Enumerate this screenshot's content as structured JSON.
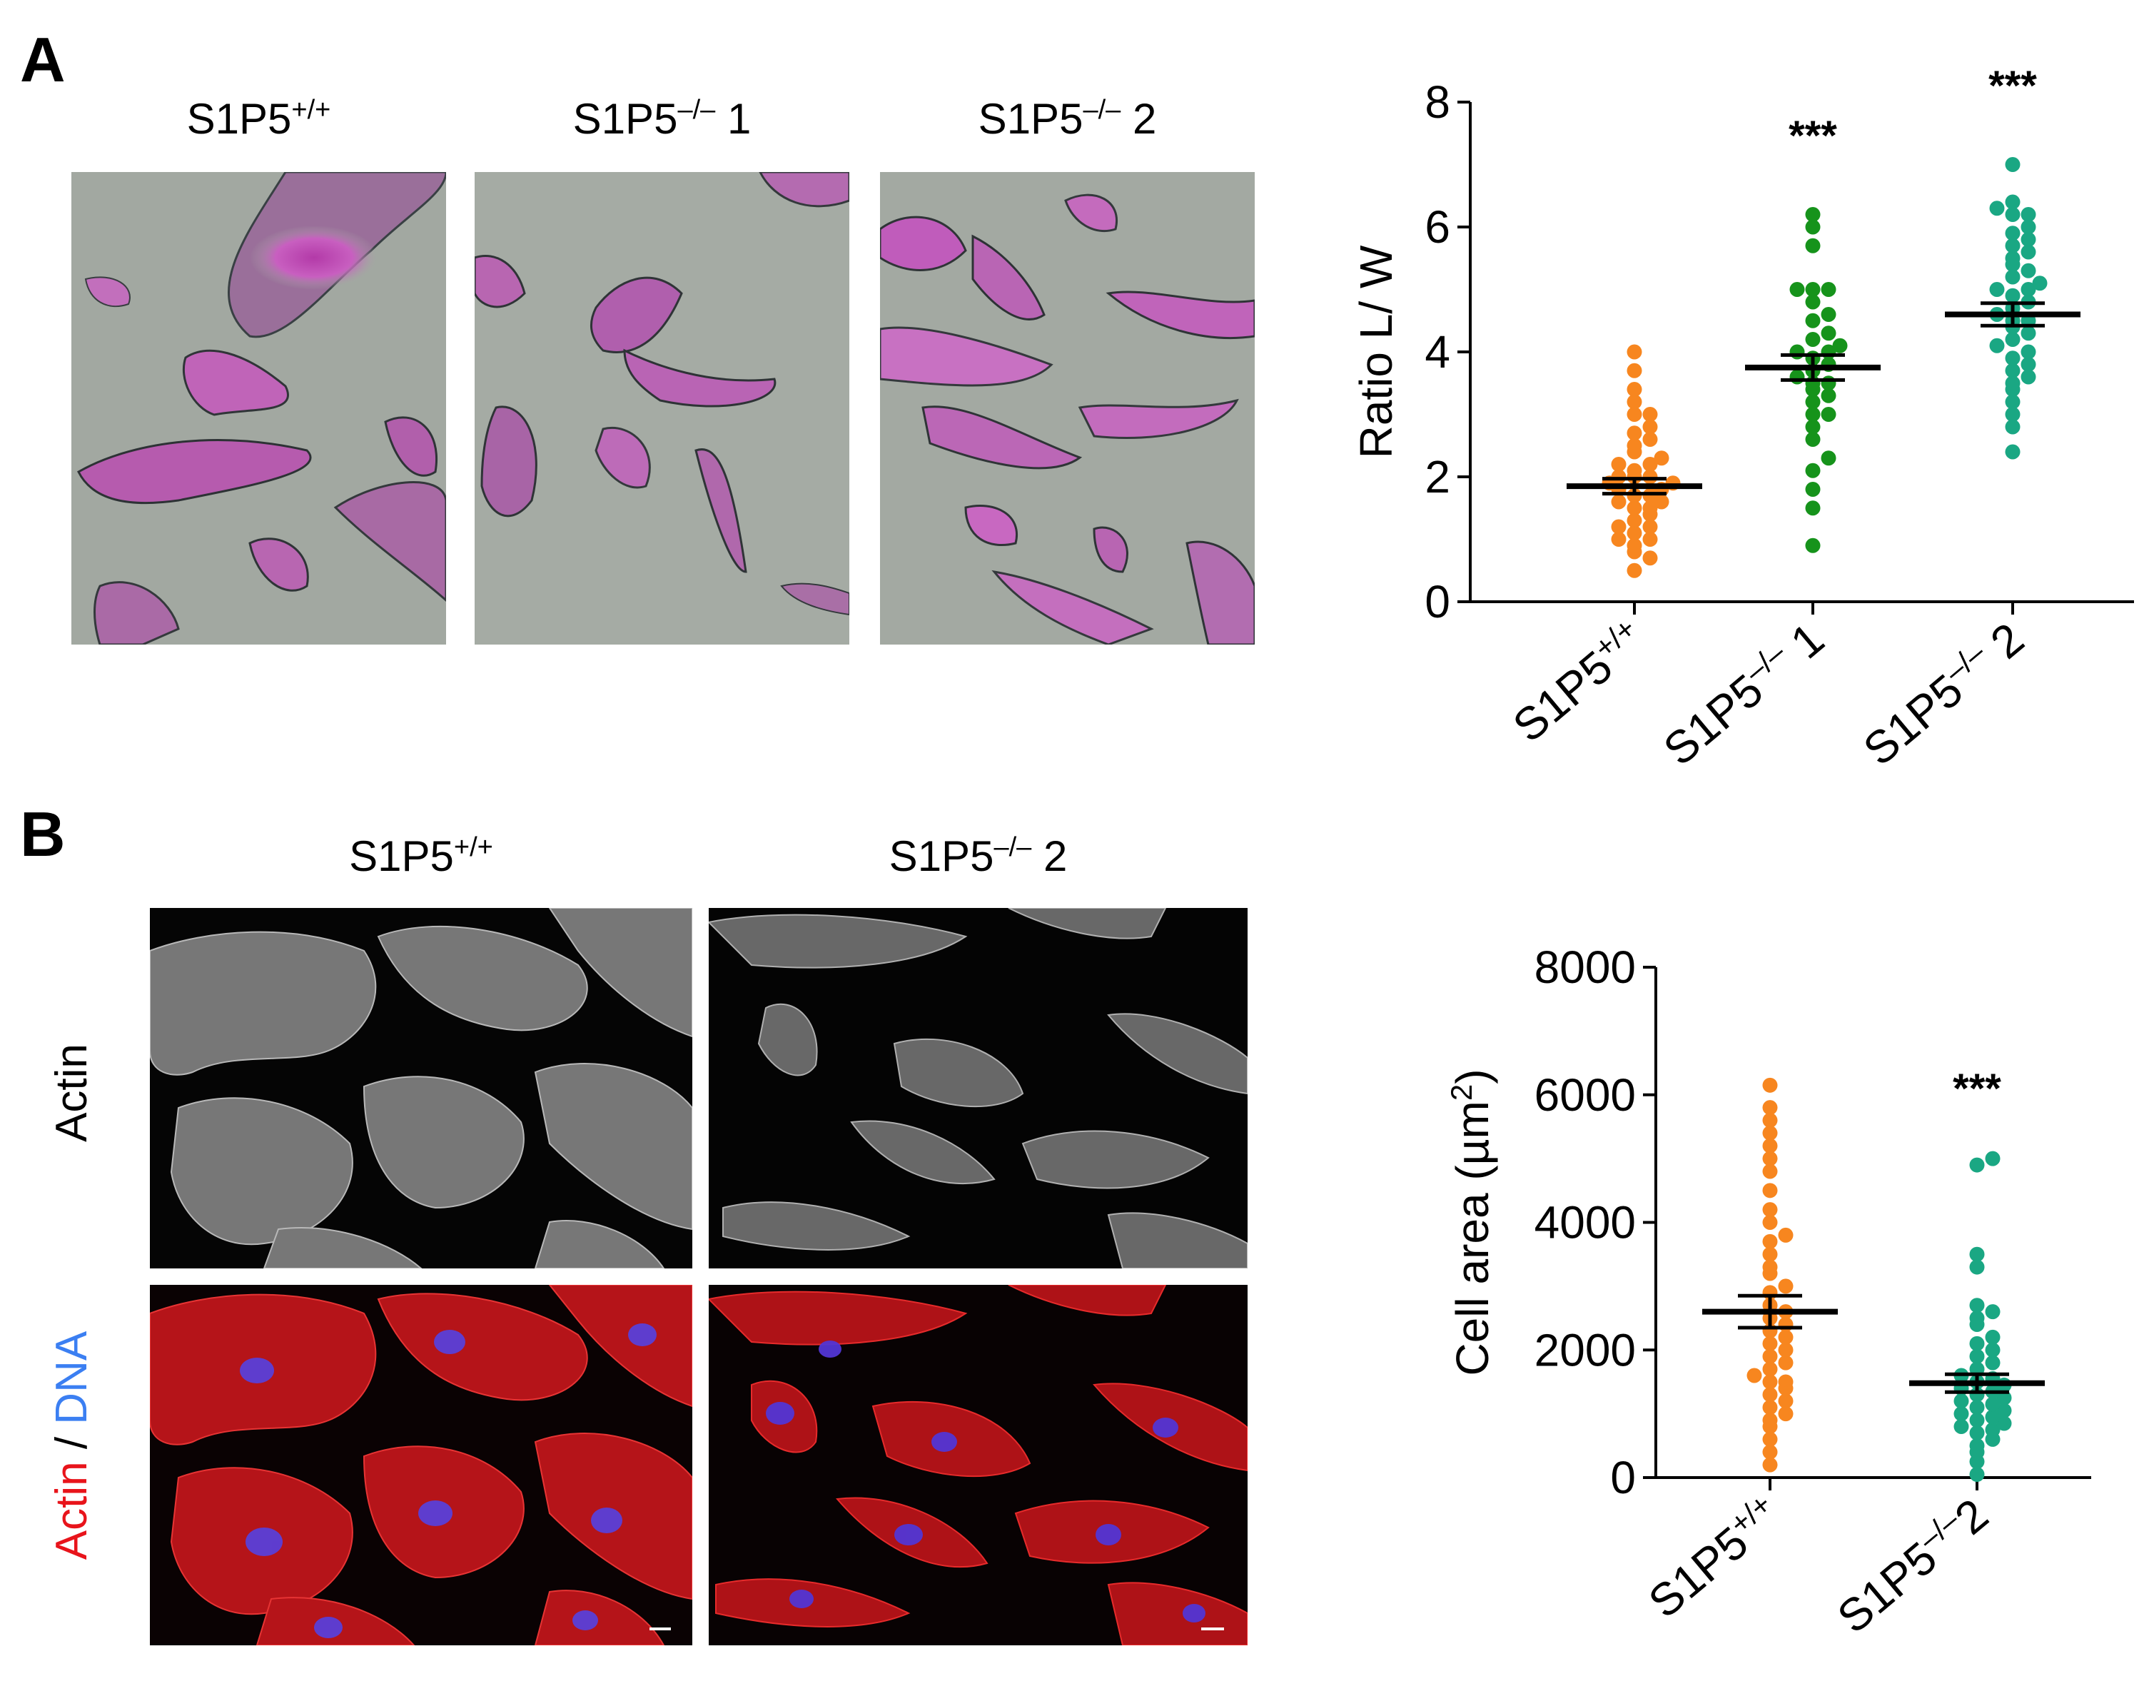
{
  "panel_a": {
    "letter": "A",
    "images": [
      {
        "label_base": "S1P5",
        "label_sup": "+/+",
        "label_suffix": ""
      },
      {
        "label_base": "S1P5",
        "label_sup": "–/–",
        "label_suffix": " 1"
      },
      {
        "label_base": "S1P5",
        "label_sup": "–/–",
        "label_suffix": " 2"
      }
    ]
  },
  "panel_b": {
    "letter": "B",
    "images": [
      {
        "label_base": "S1P5",
        "label_sup": "+/+",
        "label_suffix": ""
      },
      {
        "label_base": "S1P5",
        "label_sup": "–/–",
        "label_suffix": " 2"
      }
    ],
    "row_label_actin": "Actin",
    "row_label_merge_actin": "Actin",
    "row_label_merge_sep": " / ",
    "row_label_merge_dna": "DNA"
  },
  "colors": {
    "wt": "#f7861f",
    "ko1": "#16931b",
    "ko2": "#1aa783",
    "actin_red": "#e8141b",
    "dna_blue": "#3b7ff2"
  },
  "chart_data": [
    {
      "type": "scatter",
      "ylabel": "Ratio L/ W",
      "ylim": [
        0,
        8
      ],
      "yticks": [
        0,
        2,
        4,
        6,
        8
      ],
      "categories": [
        "S1P5+/+",
        "S1P5–/– 1",
        "S1P5–/– 2"
      ],
      "tick_labels": [
        {
          "base": "S1P5",
          "sup": "+/+",
          "suffix": ""
        },
        {
          "base": "S1P5",
          "sup": "–/–",
          "suffix": " 1"
        },
        {
          "base": "S1P5",
          "sup": "–/–",
          "suffix": " 2"
        }
      ],
      "significance": [
        "",
        "***",
        "***"
      ],
      "series": [
        {
          "color_key": "wt",
          "mean": 1.85,
          "sem": 0.12,
          "values": [
            0.5,
            0.7,
            0.8,
            0.9,
            1.0,
            1.0,
            1.1,
            1.2,
            1.2,
            1.3,
            1.4,
            1.5,
            1.5,
            1.6,
            1.6,
            1.7,
            1.7,
            1.8,
            1.8,
            1.9,
            1.9,
            2.0,
            2.0,
            2.0,
            2.1,
            2.2,
            2.2,
            2.3,
            2.4,
            2.5,
            2.6,
            2.7,
            2.8,
            3.0,
            3.0,
            3.2,
            3.4,
            3.7,
            4.0
          ]
        },
        {
          "color_key": "ko1",
          "mean": 3.75,
          "sem": 0.2,
          "values": [
            0.9,
            1.5,
            1.8,
            2.1,
            2.3,
            2.6,
            2.8,
            3.0,
            3.0,
            3.2,
            3.3,
            3.4,
            3.5,
            3.5,
            3.6,
            3.7,
            3.8,
            3.9,
            4.0,
            4.0,
            4.1,
            4.2,
            4.3,
            4.5,
            4.6,
            4.8,
            5.0,
            5.0,
            5.0,
            5.7,
            6.0,
            6.2
          ]
        },
        {
          "color_key": "ko2",
          "mean": 4.6,
          "sem": 0.18,
          "values": [
            2.4,
            2.8,
            3.0,
            3.2,
            3.4,
            3.5,
            3.6,
            3.7,
            3.8,
            3.9,
            4.0,
            4.1,
            4.2,
            4.3,
            4.4,
            4.5,
            4.5,
            4.6,
            4.7,
            4.8,
            4.9,
            5.0,
            5.0,
            5.1,
            5.2,
            5.3,
            5.4,
            5.5,
            5.6,
            5.7,
            5.8,
            5.9,
            6.0,
            6.2,
            6.2,
            6.3,
            6.4,
            7.0
          ]
        }
      ]
    },
    {
      "type": "scatter",
      "ylabel_base": "Cell area (µm",
      "ylabel_sup": "2",
      "ylabel_end": ")",
      "ylim": [
        0,
        8000
      ],
      "yticks": [
        0,
        2000,
        4000,
        6000,
        8000
      ],
      "categories": [
        "S1P5+/+",
        "S1P5–/–2"
      ],
      "tick_labels": [
        {
          "base": "S1P5",
          "sup": "+/+",
          "suffix": ""
        },
        {
          "base": "S1P5",
          "sup": "–/–",
          "suffix": "2"
        }
      ],
      "significance": [
        "",
        "***"
      ],
      "series": [
        {
          "color_key": "wt",
          "mean": 2600,
          "sem": 250,
          "values": [
            200,
            400,
            600,
            800,
            900,
            1000,
            1100,
            1200,
            1300,
            1400,
            1500,
            1500,
            1600,
            1700,
            1800,
            1900,
            2000,
            2100,
            2200,
            2300,
            2400,
            2500,
            2600,
            2700,
            2900,
            3000,
            3200,
            3300,
            3500,
            3700,
            3800,
            4000,
            4200,
            4500,
            4800,
            5000,
            5200,
            5400,
            5600,
            5800,
            6150
          ]
        },
        {
          "color_key": "ko2",
          "mean": 1480,
          "sem": 140,
          "values": [
            50,
            250,
            400,
            500,
            600,
            700,
            750,
            800,
            850,
            900,
            950,
            1000,
            1050,
            1100,
            1150,
            1200,
            1250,
            1300,
            1350,
            1400,
            1450,
            1500,
            1550,
            1600,
            1700,
            1800,
            1900,
            2000,
            2100,
            2200,
            2400,
            2500,
            2600,
            2700,
            3300,
            3500,
            4900,
            5000
          ]
        }
      ]
    }
  ]
}
